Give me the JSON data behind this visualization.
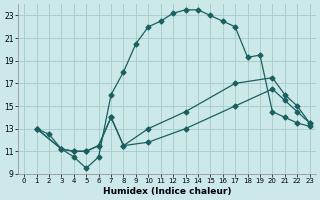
{
  "xlabel": "Humidex (Indice chaleur)",
  "background_color": "#cce8e8",
  "grid_color": "#aacece",
  "line_color": "#1a6060",
  "xlim": [
    -0.5,
    23.5
  ],
  "ylim": [
    9,
    24
  ],
  "xticks": [
    0,
    1,
    2,
    3,
    4,
    5,
    6,
    7,
    8,
    9,
    10,
    11,
    12,
    13,
    14,
    15,
    16,
    17,
    18,
    19,
    20,
    21,
    22,
    23
  ],
  "yticks": [
    9,
    11,
    13,
    15,
    17,
    19,
    21,
    23
  ],
  "line1_x": [
    1,
    2,
    3,
    4,
    5,
    6,
    7,
    8,
    9,
    10,
    11,
    12,
    13,
    14,
    15,
    16,
    17,
    18,
    19,
    20,
    21,
    22,
    23
  ],
  "line1_y": [
    13,
    12.5,
    11.2,
    10.5,
    9.5,
    10.5,
    16.0,
    18.0,
    20.5,
    22.0,
    22.5,
    23.2,
    23.5,
    23.5,
    23.0,
    22.5,
    22.0,
    19.3,
    19.5,
    14.5,
    14.0,
    13.5,
    13.2
  ],
  "line2_x": [
    1,
    3,
    4,
    5,
    6,
    7,
    8,
    10,
    13,
    17,
    20,
    21,
    22,
    23
  ],
  "line2_y": [
    13,
    11.2,
    11.0,
    11.0,
    11.5,
    14.0,
    11.5,
    13.0,
    14.5,
    17.0,
    17.5,
    16.0,
    15.0,
    13.5
  ],
  "line3_x": [
    1,
    3,
    4,
    5,
    6,
    7,
    8,
    10,
    13,
    17,
    20,
    21,
    22,
    23
  ],
  "line3_y": [
    13,
    11.2,
    11.0,
    11.0,
    11.5,
    14.0,
    11.5,
    11.8,
    13.0,
    15.0,
    16.5,
    15.5,
    14.5,
    13.5
  ]
}
